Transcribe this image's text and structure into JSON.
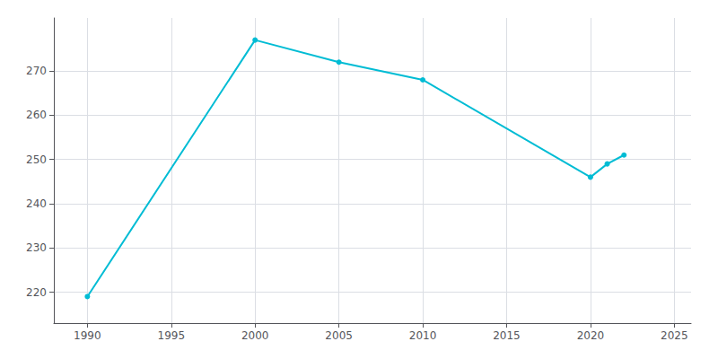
{
  "chart_data": {
    "type": "line",
    "x": [
      1990,
      2000,
      2005,
      2010,
      2020,
      2021,
      2022
    ],
    "values": [
      219,
      277,
      272,
      268,
      246,
      249,
      251
    ],
    "color": "#00BCD4",
    "marker": "circle",
    "xlim": [
      1988,
      2026
    ],
    "ylim": [
      213,
      282
    ],
    "xticks": [
      1990,
      1995,
      2000,
      2005,
      2010,
      2015,
      2020,
      2025
    ],
    "yticks": [
      220,
      230,
      240,
      250,
      260,
      270
    ],
    "grid": true
  }
}
